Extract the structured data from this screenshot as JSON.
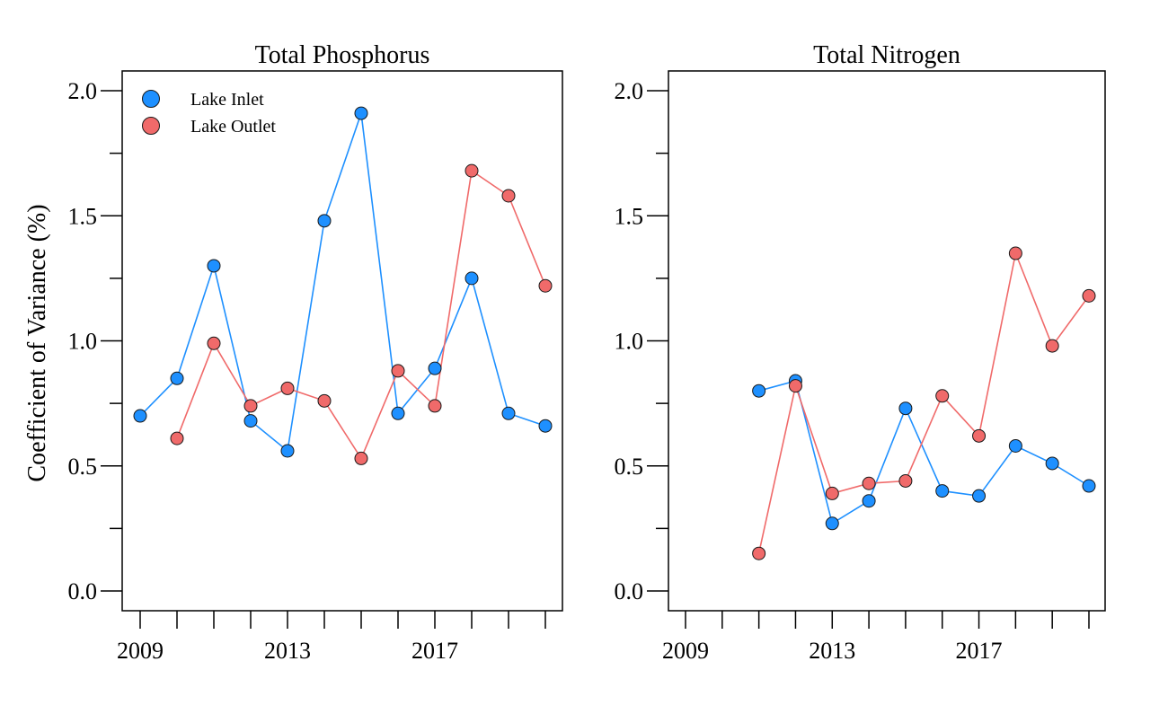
{
  "colors": {
    "inlet": "#1E90FF",
    "outlet": "#F06A6A"
  },
  "ylabel": "Coefficient of Variance (%)",
  "legend": [
    "Lake Inlet",
    "Lake Outlet"
  ],
  "chart_data": [
    {
      "type": "line",
      "title": "Total Phosphorus",
      "xlabel": "",
      "ylabel": "Coefficient of Variance (%)",
      "xlim": [
        2009,
        2020
      ],
      "ylim": [
        0,
        2
      ],
      "x_ticks": [
        2009,
        2010,
        2011,
        2012,
        2013,
        2014,
        2015,
        2016,
        2017,
        2018,
        2019,
        2020
      ],
      "x_tick_labels": [
        {
          "value": 2009,
          "label": "2009"
        },
        {
          "value": 2013,
          "label": "2013"
        },
        {
          "value": 2017,
          "label": "2017"
        }
      ],
      "y_ticks": [
        0,
        0.25,
        0.5,
        0.75,
        1.0,
        1.25,
        1.5,
        1.75,
        2.0
      ],
      "y_tick_labels": [
        {
          "value": 0,
          "label": "0.0"
        },
        {
          "value": 0.5,
          "label": "0.5"
        },
        {
          "value": 1.0,
          "label": "1.0"
        },
        {
          "value": 1.5,
          "label": "1.5"
        },
        {
          "value": 2.0,
          "label": "2.0"
        }
      ],
      "legend_position": "top-left",
      "grid": false,
      "series": [
        {
          "name": "Lake Inlet",
          "color": "#1E90FF",
          "x": [
            2009,
            2010,
            2011,
            2012,
            2013,
            2014,
            2015,
            2016,
            2017,
            2018,
            2019,
            2020
          ],
          "y": [
            0.7,
            0.85,
            1.3,
            0.68,
            0.56,
            1.48,
            1.91,
            0.71,
            0.89,
            1.25,
            0.71,
            0.66
          ]
        },
        {
          "name": "Lake Outlet",
          "color": "#F06A6A",
          "x": [
            2010,
            2011,
            2012,
            2013,
            2014,
            2015,
            2016,
            2017,
            2018,
            2019,
            2020
          ],
          "y": [
            0.61,
            0.99,
            0.74,
            0.81,
            0.76,
            0.53,
            0.88,
            0.74,
            1.68,
            1.58,
            1.22
          ]
        }
      ]
    },
    {
      "type": "line",
      "title": "Total Nitrogen",
      "xlabel": "",
      "ylabel": "",
      "xlim": [
        2009,
        2020
      ],
      "ylim": [
        0,
        2
      ],
      "x_ticks": [
        2009,
        2010,
        2011,
        2012,
        2013,
        2014,
        2015,
        2016,
        2017,
        2018,
        2019,
        2020
      ],
      "x_tick_labels": [
        {
          "value": 2009,
          "label": "2009"
        },
        {
          "value": 2013,
          "label": "2013"
        },
        {
          "value": 2017,
          "label": "2017"
        }
      ],
      "y_ticks": [
        0,
        0.25,
        0.5,
        0.75,
        1.0,
        1.25,
        1.5,
        1.75,
        2.0
      ],
      "y_tick_labels": [
        {
          "value": 0,
          "label": "0.0"
        },
        {
          "value": 0.5,
          "label": "0.5"
        },
        {
          "value": 1.0,
          "label": "1.0"
        },
        {
          "value": 1.5,
          "label": "1.5"
        },
        {
          "value": 2.0,
          "label": "2.0"
        }
      ],
      "grid": false,
      "series": [
        {
          "name": "Lake Inlet",
          "color": "#1E90FF",
          "x": [
            2011,
            2012,
            2013,
            2014,
            2015,
            2016,
            2017,
            2018,
            2019,
            2020
          ],
          "y": [
            0.8,
            0.84,
            0.27,
            0.36,
            0.73,
            0.4,
            0.38,
            0.58,
            0.51,
            0.42
          ]
        },
        {
          "name": "Lake Outlet",
          "color": "#F06A6A",
          "x": [
            2011,
            2012,
            2013,
            2014,
            2015,
            2016,
            2017,
            2018,
            2019,
            2020
          ],
          "y": [
            0.15,
            0.82,
            0.39,
            0.43,
            0.44,
            0.78,
            0.62,
            1.35,
            0.98,
            1.18
          ]
        }
      ]
    }
  ]
}
